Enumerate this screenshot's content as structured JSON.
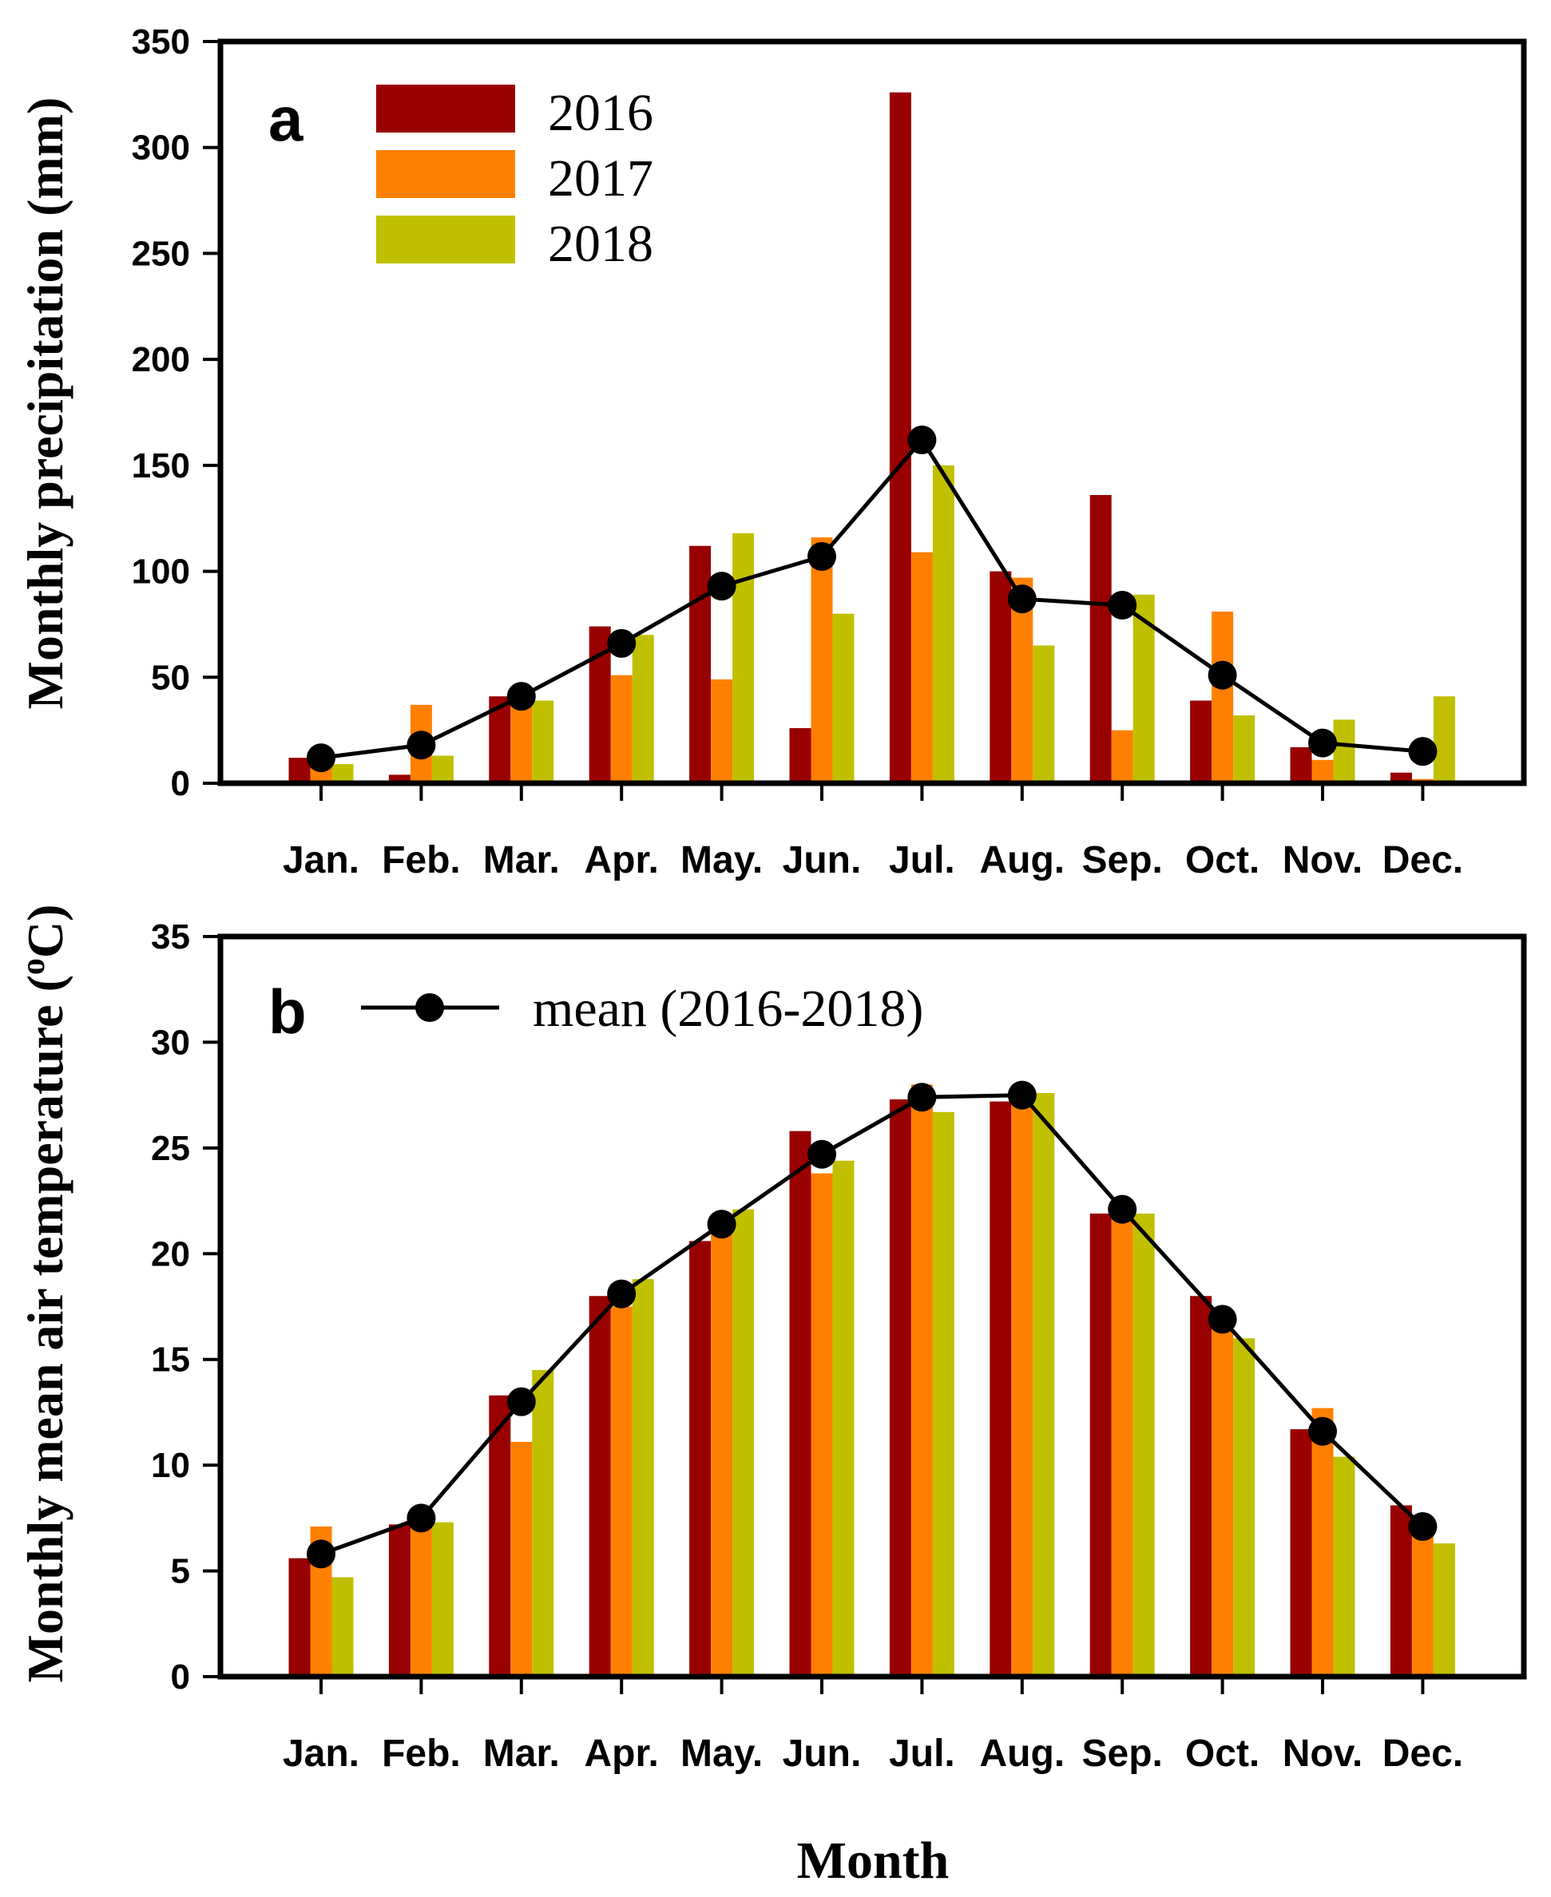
{
  "xlabel": "Month",
  "months": [
    "Jan.",
    "Feb.",
    "Mar.",
    "Apr.",
    "May.",
    "Jun.",
    "Jul.",
    "Aug.",
    "Sep.",
    "Oct.",
    "Nov.",
    "Dec."
  ],
  "colors": {
    "2016": "#990000",
    "2017": "#ff8000",
    "2018": "#c0c000",
    "mean": "#000000"
  },
  "chart_data": [
    {
      "type": "bar",
      "panel": "a",
      "ylabel": "Monthly precipitation (mm)",
      "ylim": [
        0,
        350
      ],
      "yticks": [
        "0",
        "50",
        "100",
        "150",
        "200",
        "250",
        "300",
        "350"
      ],
      "categories": [
        "Jan.",
        "Feb.",
        "Mar.",
        "Apr.",
        "May.",
        "Jun.",
        "Jul.",
        "Aug.",
        "Sep.",
        "Oct.",
        "Nov.",
        "Dec."
      ],
      "series": [
        {
          "name": "2016",
          "values": [
            12,
            4,
            41,
            74,
            112,
            26,
            326,
            100,
            136,
            39,
            17,
            5
          ]
        },
        {
          "name": "2017",
          "values": [
            10,
            37,
            40,
            51,
            49,
            116,
            109,
            97,
            25,
            81,
            11,
            2
          ]
        },
        {
          "name": "2018",
          "values": [
            9,
            13,
            39,
            70,
            118,
            80,
            150,
            65,
            89,
            32,
            30,
            41
          ]
        }
      ],
      "line": {
        "name": "",
        "values": [
          12,
          18,
          41,
          66,
          93,
          107,
          162,
          87,
          84,
          51,
          19,
          15
        ]
      },
      "legend": [
        "2016",
        "2017",
        "2018"
      ],
      "legend_position": "top-left"
    },
    {
      "type": "bar",
      "panel": "b",
      "ylabel": "Monthly mean air temperature (oC)",
      "ylim": [
        0,
        35
      ],
      "yticks": [
        "0",
        "5",
        "10",
        "15",
        "20",
        "25",
        "30",
        "35"
      ],
      "categories": [
        "Jan.",
        "Feb.",
        "Mar.",
        "Apr.",
        "May.",
        "Jun.",
        "Jul.",
        "Aug.",
        "Sep.",
        "Oct.",
        "Nov.",
        "Dec."
      ],
      "series": [
        {
          "name": "2016",
          "values": [
            5.6,
            7.2,
            13.3,
            18.0,
            20.6,
            25.8,
            27.3,
            27.2,
            21.9,
            18.0,
            11.7,
            8.1
          ]
        },
        {
          "name": "2017",
          "values": [
            7.1,
            7.5,
            11.1,
            17.5,
            21.5,
            23.8,
            28.0,
            27.5,
            21.8,
            16.8,
            12.7,
            7.3
          ]
        },
        {
          "name": "2018",
          "values": [
            4.7,
            7.3,
            14.5,
            18.8,
            22.1,
            24.4,
            26.7,
            27.6,
            21.9,
            16.0,
            10.4,
            6.3
          ]
        }
      ],
      "line": {
        "name": "mean (2016-2018)",
        "values": [
          5.8,
          7.5,
          13.0,
          18.1,
          21.4,
          24.7,
          27.4,
          27.5,
          22.1,
          16.9,
          11.6,
          7.1
        ]
      },
      "legend": [
        "mean (2016-2018)"
      ],
      "legend_position": "top-left"
    }
  ]
}
